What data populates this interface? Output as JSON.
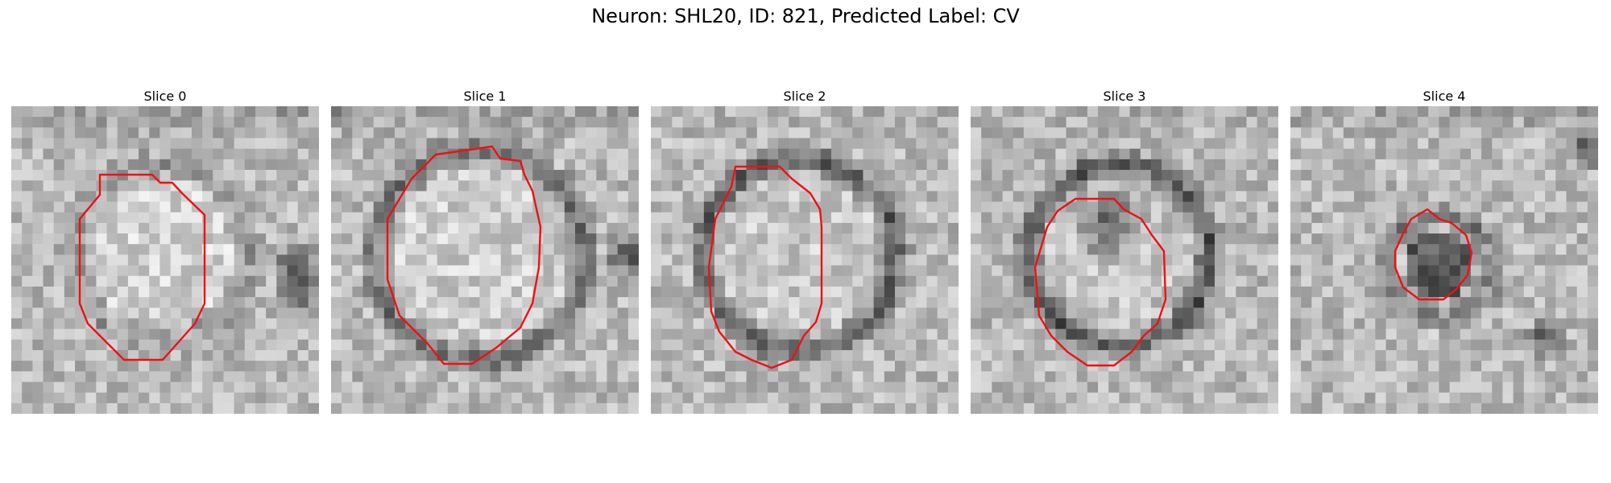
{
  "figure": {
    "title": "Neuron: SHL20, ID: 821, Predicted Label: CV"
  },
  "contour_color": "#ee1111",
  "panels": [
    {
      "title": "Slice 0"
    },
    {
      "title": "Slice 1"
    },
    {
      "title": "Slice 2"
    },
    {
      "title": "Slice 3"
    },
    {
      "title": "Slice 4"
    }
  ]
}
